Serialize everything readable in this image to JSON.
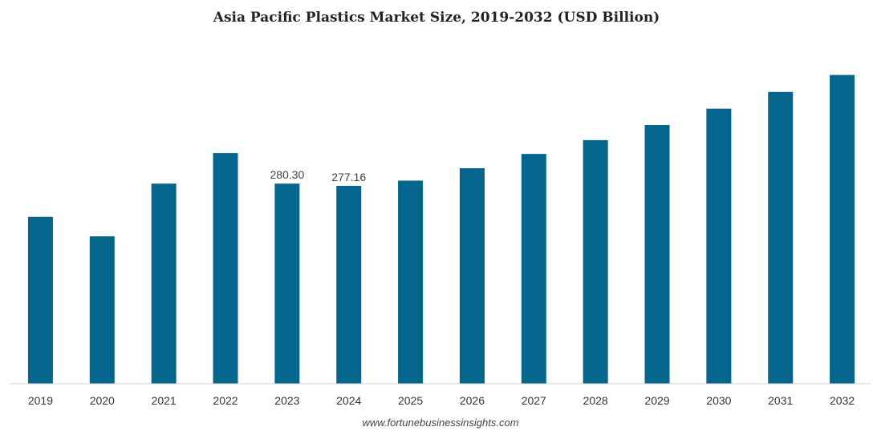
{
  "chart_data": {
    "type": "bar",
    "title": "Asia Pacific Plastics Market Size, 2019-2032 (USD Billion)",
    "xlabel": "",
    "ylabel": "",
    "categories": [
      "2019",
      "2020",
      "2021",
      "2022",
      "2023",
      "2024",
      "2025",
      "2026",
      "2027",
      "2028",
      "2029",
      "2030",
      "2031",
      "2032"
    ],
    "series": [
      {
        "values": [
          233.7,
          206.5,
          280.3,
          323.1,
          280.3,
          277.16,
          284.5,
          301.9,
          321.9,
          341.2,
          362.5,
          385.3,
          408.7,
          432.5
        ],
        "color": "#05668d"
      }
    ],
    "data_labels": [
      "",
      "",
      "",
      "",
      "280.30",
      "277.16",
      "",
      "",
      "",
      "",
      "",
      "",
      "",
      ""
    ],
    "ylim": [
      0,
      441
    ],
    "grid": false,
    "legend": "none"
  },
  "source": "www.fortunebusinessinsights.com"
}
